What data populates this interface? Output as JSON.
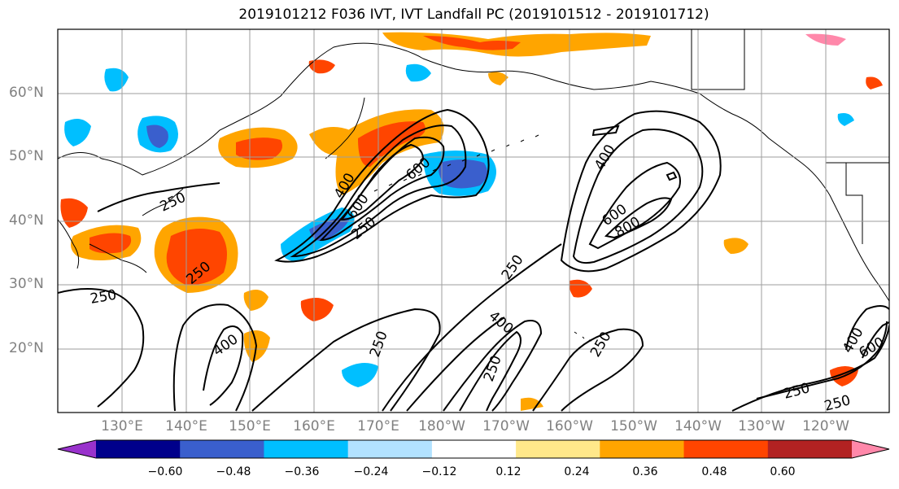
{
  "title": "2019101212 F036 IVT, IVT Landfall PC (2019101512 - 2019101712)",
  "lat_labels": [
    "60°N",
    "50°N",
    "40°N",
    "30°N",
    "20°N"
  ],
  "lon_labels": [
    "130°E",
    "140°E",
    "150°E",
    "160°E",
    "170°E",
    "180°W",
    "170°W",
    "160°W",
    "150°W",
    "140°W",
    "130°W",
    "120°W"
  ],
  "colorbar": {
    "colors": [
      "#9932cc",
      "#00008b",
      "#3a5fcd",
      "#00bfff",
      "#b2e2ff",
      "#ffffff",
      "#ffe88a",
      "#ffa500",
      "#ff4500",
      "#b22222",
      "#ff88aa"
    ],
    "ticks": [
      "−0.60",
      "−0.48",
      "−0.36",
      "−0.24",
      "−0.12",
      "0.12",
      "0.24",
      "0.36",
      "0.48",
      "0.60"
    ]
  },
  "contour_labels": [
    "250",
    "400",
    "600",
    "800"
  ],
  "colors": {
    "contour": "#000000",
    "grid": "#9e9e9e",
    "coast": "#000000"
  }
}
